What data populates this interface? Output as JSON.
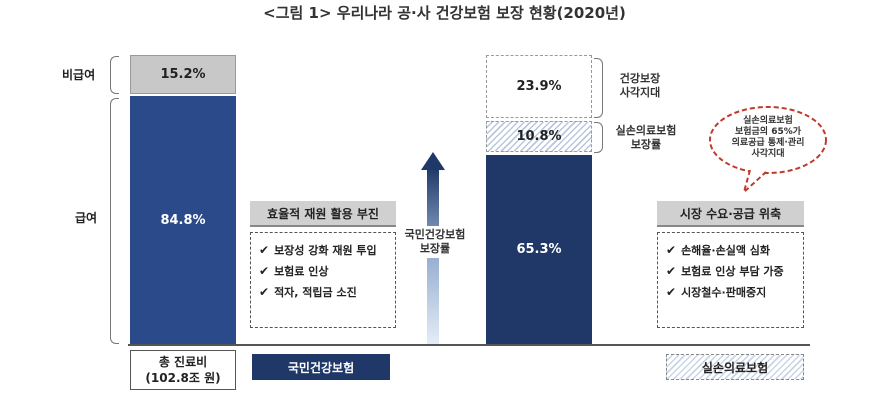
{
  "title": "<그림 1> 우리나라 공·사 건강보험 보장 현황(2020년)",
  "left_bar": {
    "top_label": "비급여",
    "top_value": "15.2%",
    "bottom_label": "급여",
    "bottom_value": "84.8%",
    "footer_line1": "총 진료비",
    "footer_line2": "(102.8조 원)"
  },
  "left_panel": {
    "header": "효율적 재원 활용 부진",
    "items": [
      "보장성 강화 재원 투입",
      "보험료 인상",
      "적자, 적립금 소진"
    ],
    "footer": "국민건강보험"
  },
  "arrow": {
    "label_line1": "국민건강보험",
    "label_line2": "보장률"
  },
  "right_bar": {
    "gap_value": "23.9%",
    "gap_label_line1": "건강보장",
    "gap_label_line2": "사각지대",
    "private_value": "10.8%",
    "private_label_line1": "실손의료보험",
    "private_label_line2": "보장률",
    "public_value": "65.3%"
  },
  "bubble": {
    "line1": "실손의료보험",
    "line2": "보험금의 65%가",
    "line3": "의료공급 통제·관리",
    "line4": "사각지대"
  },
  "right_panel": {
    "header": "시장 수요·공급 위축",
    "items": [
      "손해율·손실액 심화",
      "보험료 인상 부담 가중",
      "시장철수·판매중지"
    ],
    "footer": "실손의료보험"
  },
  "colors": {
    "navy": "#1f3868",
    "blue": "#2a4a8a",
    "grey": "#c8c8c8",
    "dashed_red": "#c0392b"
  }
}
